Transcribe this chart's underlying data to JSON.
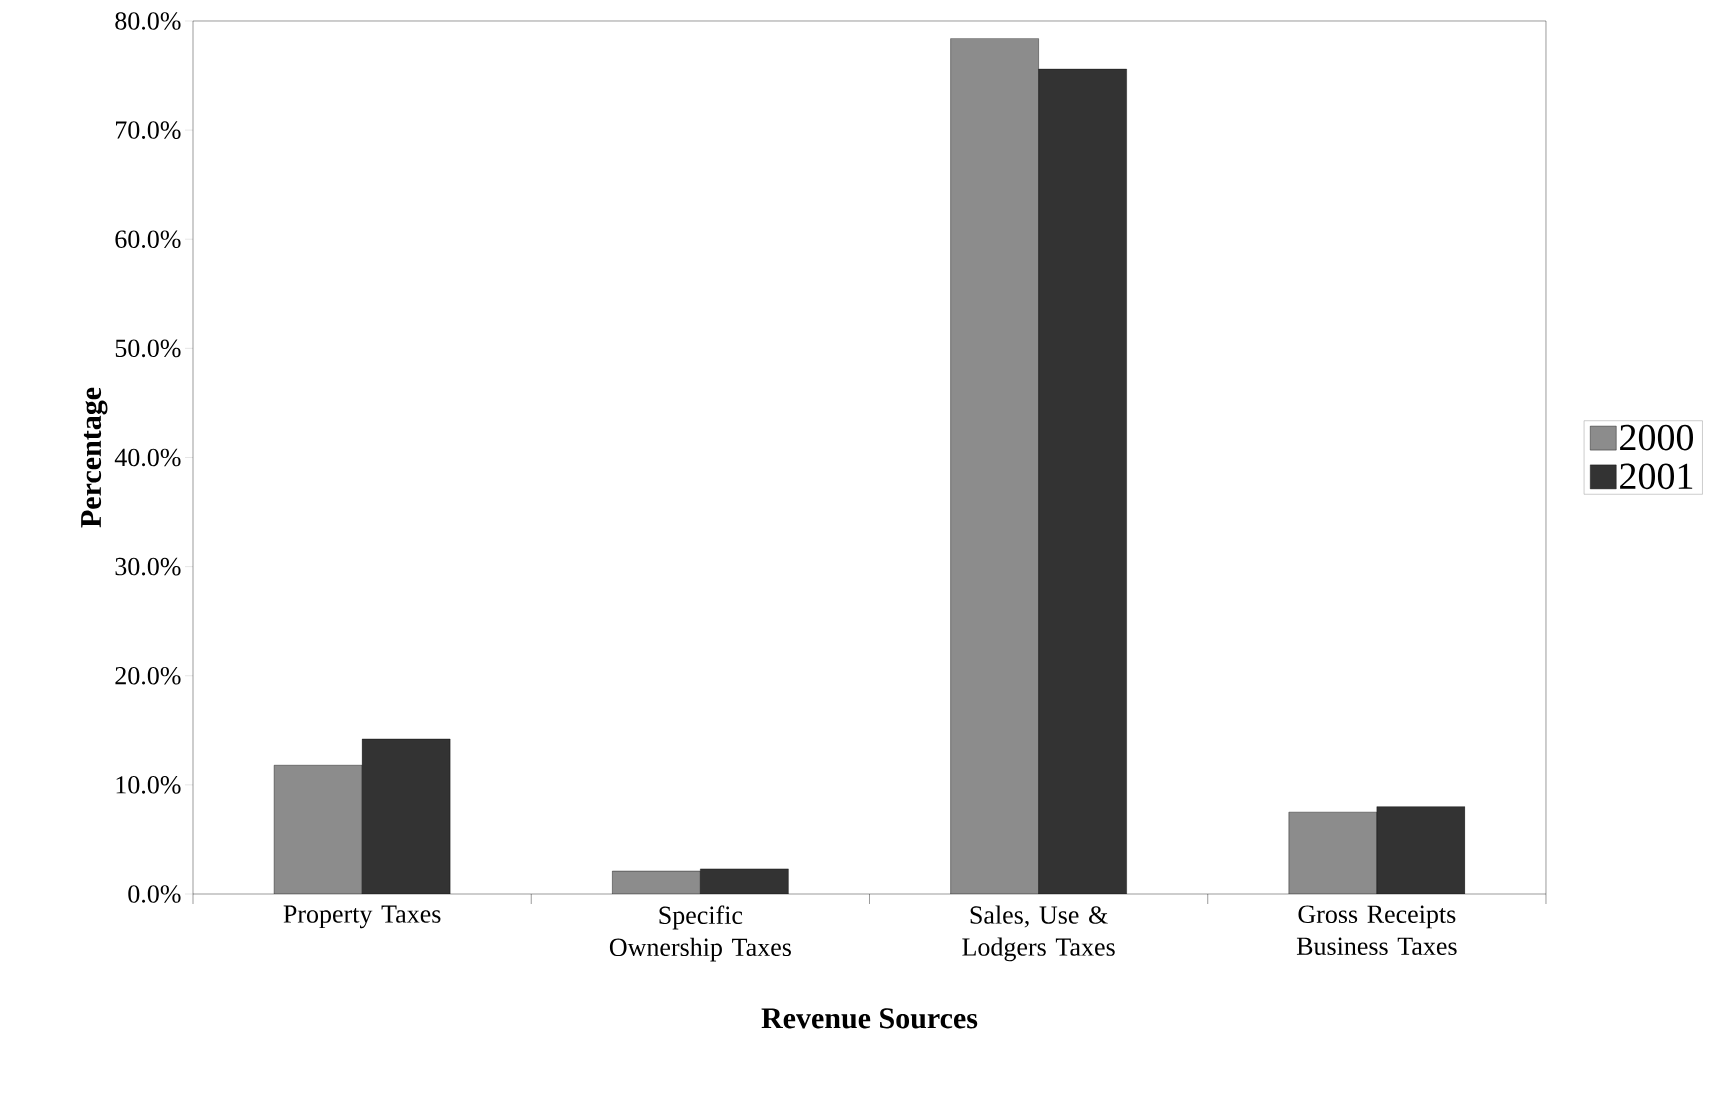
{
  "chart_data": {
    "type": "bar",
    "xlabel": "Revenue Sources",
    "ylabel": "Percentage",
    "categories": [
      "Property Taxes",
      "Specific Ownership Taxes",
      "Sales, Use & Lodgers Taxes",
      "Gross Receipts Business Taxes"
    ],
    "series": [
      {
        "name": "2000",
        "color": "#8c8c8c",
        "values": [
          11.8,
          2.1,
          78.4,
          7.5
        ]
      },
      {
        "name": "2001",
        "color": "#333333",
        "values": [
          14.2,
          2.3,
          75.6,
          8.0
        ]
      }
    ],
    "ylim": [
      0,
      80
    ],
    "yticks": [
      {
        "value": 0,
        "label": "0.0%"
      },
      {
        "value": 10,
        "label": "10.0%"
      },
      {
        "value": 20,
        "label": "20.0%"
      },
      {
        "value": 30,
        "label": "30.0%"
      },
      {
        "value": 40,
        "label": "40.0%"
      },
      {
        "value": 50,
        "label": "50.0%"
      },
      {
        "value": 60,
        "label": "60.0%"
      },
      {
        "value": 70,
        "label": "70.0%"
      },
      {
        "value": 80,
        "label": "80.0%"
      }
    ],
    "legend": "right",
    "grid": false
  }
}
